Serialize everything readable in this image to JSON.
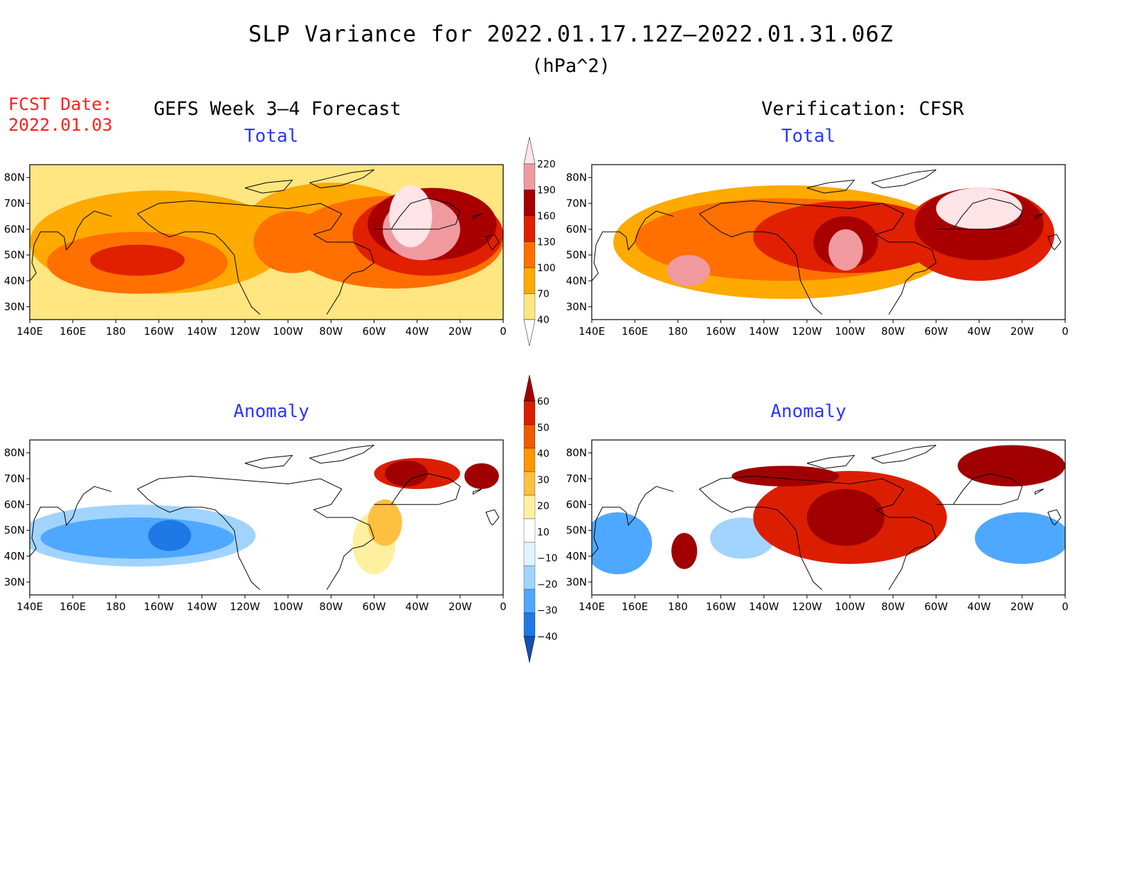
{
  "title": "SLP Variance for 2022.01.17.12Z–2022.01.31.06Z",
  "units": "(hPa^2)",
  "fcst_label": "FCST Date:",
  "fcst_date": "2022.01.03",
  "left_heading": "GEFS Week 3–4 Forecast",
  "right_heading": "Verification: CFSR",
  "panels": {
    "top_left_title": "Total",
    "top_right_title": "Total",
    "bottom_left_title": "Anomaly",
    "bottom_right_title": "Anomaly"
  },
  "axes": {
    "lon_labels": [
      "140E",
      "160E",
      "180",
      "160W",
      "140W",
      "120W",
      "100W",
      "80W",
      "60W",
      "40W",
      "20W",
      "0"
    ],
    "lat_labels": [
      "80N",
      "70N",
      "60N",
      "50N",
      "40N",
      "30N"
    ]
  },
  "colorbar_total": {
    "levels": [
      "40",
      "70",
      "100",
      "130",
      "160",
      "190",
      "220"
    ],
    "colors": [
      "#ffe680",
      "#ffaa00",
      "#ff7000",
      "#e02000",
      "#a80000",
      "#f09aa0",
      "#ffe4e8"
    ]
  },
  "colorbar_anomaly": {
    "levels": [
      "60",
      "50",
      "40",
      "30",
      "20",
      "10",
      "−10",
      "−20",
      "−30",
      "−40"
    ],
    "colors": [
      "#a00000",
      "#dc1e00",
      "#f05a00",
      "#ff9600",
      "#ffc040",
      "#fff0a0",
      "#ffffff",
      "#e0f4ff",
      "#a0d4ff",
      "#4fa8ff",
      "#1e78e6",
      "#1450b4"
    ]
  },
  "colors": {
    "fcst_red": "#ff2020",
    "panel_title_blue": "#2a35ff"
  },
  "map_fields": {
    "tl": [
      {
        "c": 1,
        "lon": 200,
        "lat": 55,
        "rx": 60,
        "ry": 20
      },
      {
        "c": 1,
        "lon": 280,
        "lat": 62,
        "rx": 40,
        "ry": 16
      },
      {
        "c": 2,
        "lon": 190,
        "lat": 47,
        "rx": 42,
        "ry": 12
      },
      {
        "c": 2,
        "lon": 262,
        "lat": 55,
        "rx": 18,
        "ry": 12
      },
      {
        "c": 2,
        "lon": 310,
        "lat": 55,
        "rx": 50,
        "ry": 18
      },
      {
        "c": 3,
        "lon": 190,
        "lat": 48,
        "rx": 22,
        "ry": 6
      },
      {
        "c": 3,
        "lon": 325,
        "lat": 58,
        "rx": 35,
        "ry": 16
      },
      {
        "c": 4,
        "lon": 327,
        "lat": 62,
        "rx": 30,
        "ry": 14
      },
      {
        "c": 5,
        "lon": 322,
        "lat": 60,
        "rx": 18,
        "ry": 12
      },
      {
        "c": 6,
        "lon": 317,
        "lat": 65,
        "rx": 10,
        "ry": 12
      }
    ],
    "tr": [
      {
        "c": 1,
        "lon": 230,
        "lat": 55,
        "rx": 80,
        "ry": 22
      },
      {
        "c": 2,
        "lon": 230,
        "lat": 56,
        "rx": 70,
        "ry": 16
      },
      {
        "c": 3,
        "lon": 260,
        "lat": 57,
        "rx": 45,
        "ry": 14
      },
      {
        "c": 3,
        "lon": 320,
        "lat": 58,
        "rx": 35,
        "ry": 18
      },
      {
        "c": 4,
        "lon": 258,
        "lat": 55,
        "rx": 15,
        "ry": 10
      },
      {
        "c": 4,
        "lon": 320,
        "lat": 62,
        "rx": 30,
        "ry": 14
      },
      {
        "c": 5,
        "lon": 258,
        "lat": 52,
        "rx": 8,
        "ry": 8
      },
      {
        "c": 5,
        "lon": 185,
        "lat": 44,
        "rx": 10,
        "ry": 6
      },
      {
        "c": 6,
        "lon": 320,
        "lat": 68,
        "rx": 20,
        "ry": 8
      }
    ],
    "bl": [
      {
        "c": 8,
        "lon": 190,
        "lat": 48,
        "rx": 55,
        "ry": 12
      },
      {
        "c": 9,
        "lon": 190,
        "lat": 47,
        "rx": 45,
        "ry": 8
      },
      {
        "c": 10,
        "lon": 205,
        "lat": 48,
        "rx": 10,
        "ry": 6
      },
      {
        "c": 5,
        "lon": 300,
        "lat": 45,
        "rx": 10,
        "ry": 12
      },
      {
        "c": 4,
        "lon": 305,
        "lat": 53,
        "rx": 8,
        "ry": 9
      },
      {
        "c": 1,
        "lon": 320,
        "lat": 72,
        "rx": 20,
        "ry": 6
      },
      {
        "c": 0,
        "lon": 315,
        "lat": 72,
        "rx": 10,
        "ry": 5
      },
      {
        "c": 0,
        "lon": 350,
        "lat": 71,
        "rx": 8,
        "ry": 5
      }
    ],
    "br": [
      {
        "c": 9,
        "lon": 152,
        "lat": 45,
        "rx": 16,
        "ry": 12
      },
      {
        "c": 9,
        "lon": 340,
        "lat": 47,
        "rx": 22,
        "ry": 10
      },
      {
        "c": 8,
        "lon": 210,
        "lat": 47,
        "rx": 15,
        "ry": 8
      },
      {
        "c": 1,
        "lon": 260,
        "lat": 55,
        "rx": 45,
        "ry": 18
      },
      {
        "c": 0,
        "lon": 258,
        "lat": 55,
        "rx": 18,
        "ry": 11
      },
      {
        "c": 0,
        "lon": 335,
        "lat": 75,
        "rx": 25,
        "ry": 8
      },
      {
        "c": 0,
        "lon": 230,
        "lat": 71,
        "rx": 25,
        "ry": 4
      },
      {
        "c": 0,
        "lon": 183,
        "lat": 42,
        "rx": 6,
        "ry": 7
      }
    ]
  }
}
